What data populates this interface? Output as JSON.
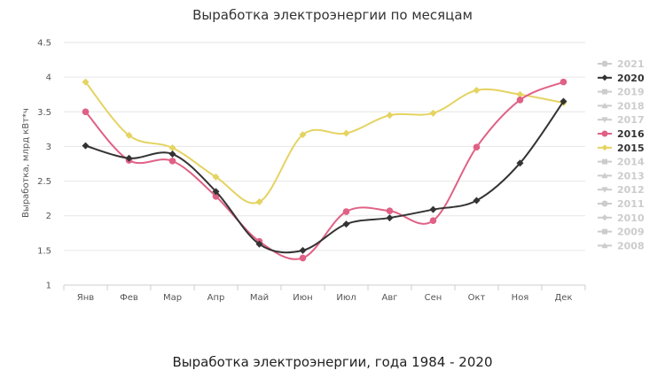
{
  "chart_data": {
    "type": "line",
    "title": "Выработка электроэнергии по месяцам",
    "ylabel": "Выработка, млрд кВт*ч",
    "xlabel": "",
    "caption": "Выработка электроэнергии, года 1984 - 2020",
    "ylim": [
      1,
      4.5
    ],
    "yticks": [
      "1",
      "1.5",
      "2",
      "2.5",
      "3",
      "3.5",
      "4",
      "4.5"
    ],
    "categories": [
      "Янв",
      "Фев",
      "Мар",
      "Апр",
      "Май",
      "Июн",
      "Июл",
      "Авг",
      "Сен",
      "Окт",
      "Ноя",
      "Дек"
    ],
    "grid": true,
    "legend_position": "right",
    "series": [
      {
        "name": "2020",
        "color": "#333333",
        "marker": "diamond",
        "values": [
          3.01,
          2.83,
          2.89,
          2.35,
          1.59,
          1.5,
          1.88,
          1.97,
          2.09,
          2.22,
          2.76,
          3.65
        ]
      },
      {
        "name": "2016",
        "color": "#e06185",
        "marker": "circle",
        "values": [
          3.5,
          2.8,
          2.79,
          2.28,
          1.63,
          1.39,
          2.06,
          2.07,
          1.93,
          2.99,
          3.67,
          3.93
        ]
      },
      {
        "name": "2015",
        "color": "#e5d362",
        "marker": "diamond",
        "values": [
          3.93,
          3.16,
          2.98,
          2.56,
          2.2,
          3.17,
          3.19,
          3.45,
          3.48,
          3.81,
          3.75,
          3.63
        ]
      }
    ],
    "legend": [
      {
        "name": "2021",
        "active": false,
        "marker": "circle"
      },
      {
        "name": "2020",
        "active": true,
        "marker": "diamond",
        "color": "#333333"
      },
      {
        "name": "2019",
        "active": false,
        "marker": "square"
      },
      {
        "name": "2018",
        "active": false,
        "marker": "triangle"
      },
      {
        "name": "2017",
        "active": false,
        "marker": "triangle-down"
      },
      {
        "name": "2016",
        "active": true,
        "marker": "circle",
        "color": "#e06185"
      },
      {
        "name": "2015",
        "active": true,
        "marker": "diamond",
        "color": "#e5d362"
      },
      {
        "name": "2014",
        "active": false,
        "marker": "square"
      },
      {
        "name": "2013",
        "active": false,
        "marker": "triangle"
      },
      {
        "name": "2012",
        "active": false,
        "marker": "triangle-down"
      },
      {
        "name": "2011",
        "active": false,
        "marker": "circle"
      },
      {
        "name": "2010",
        "active": false,
        "marker": "diamond"
      },
      {
        "name": "2009",
        "active": false,
        "marker": "square"
      },
      {
        "name": "2008",
        "active": false,
        "marker": "triangle"
      }
    ],
    "inactive_color": "#cccccc"
  }
}
